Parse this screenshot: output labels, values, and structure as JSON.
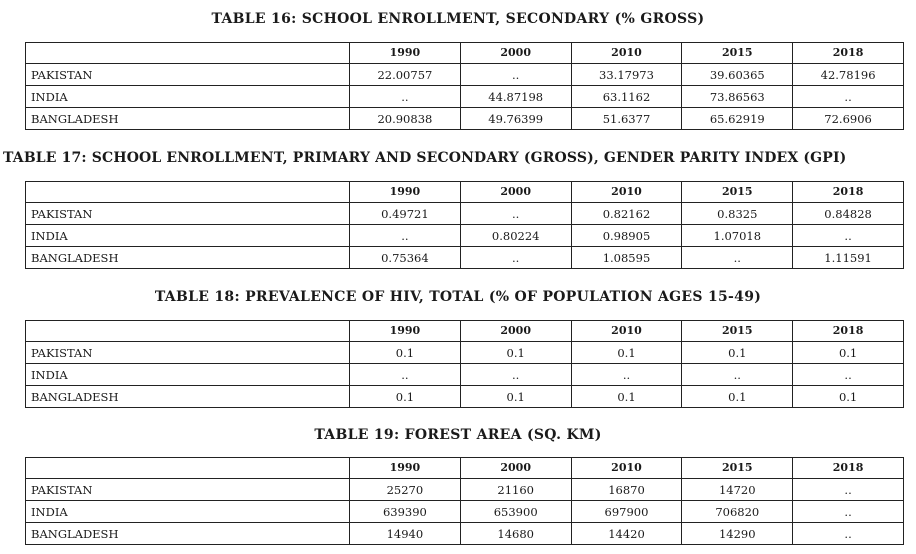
{
  "years": [
    "1990",
    "2000",
    "2010",
    "2015",
    "2018"
  ],
  "tables": [
    {
      "title": "TABLE 16: SCHOOL ENROLLMENT, SECONDARY (% GROSS)",
      "rows": [
        {
          "country": "PAKISTAN",
          "values": [
            "22.00757",
            "..",
            "33.17973",
            "39.60365",
            "42.78196"
          ]
        },
        {
          "country": "INDIA",
          "values": [
            "..",
            "44.87198",
            "63.1162",
            "73.86563",
            ".."
          ]
        },
        {
          "country": "BANGLADESH",
          "values": [
            "20.90838",
            "49.76399",
            "51.6377",
            "65.62919",
            "72.6906"
          ]
        }
      ]
    },
    {
      "title": "TABLE 17: SCHOOL ENROLLMENT, PRIMARY AND SECONDARY (GROSS), GENDER PARITY INDEX (GPI)",
      "rows": [
        {
          "country": "PAKISTAN",
          "values": [
            "0.49721",
            "..",
            "0.82162",
            "0.8325",
            "0.84828"
          ]
        },
        {
          "country": "INDIA",
          "values": [
            "..",
            "0.80224",
            "0.98905",
            "1.07018",
            ".."
          ]
        },
        {
          "country": "BANGLADESH",
          "values": [
            "0.75364",
            "..",
            "1.08595",
            "..",
            "1.11591"
          ]
        }
      ]
    },
    {
      "title": "TABLE 18: PREVALENCE OF HIV, TOTAL (% OF POPULATION AGES 15-49)",
      "rows": [
        {
          "country": "PAKISTAN",
          "values": [
            "0.1",
            "0.1",
            "0.1",
            "0.1",
            "0.1"
          ]
        },
        {
          "country": "INDIA",
          "values": [
            "..",
            "..",
            "..",
            "..",
            ".."
          ]
        },
        {
          "country": "BANGLADESH",
          "values": [
            "0.1",
            "0.1",
            "0.1",
            "0.1",
            "0.1"
          ]
        }
      ]
    },
    {
      "title": "TABLE 19: FOREST AREA (SQ. KM)",
      "rows": [
        {
          "country": "PAKISTAN",
          "values": [
            "25270",
            "21160",
            "16870",
            "14720",
            ".."
          ]
        },
        {
          "country": "INDIA",
          "values": [
            "639390",
            "653900",
            "697900",
            "706820",
            ".."
          ]
        },
        {
          "country": "BANGLADESH",
          "values": [
            "14940",
            "14680",
            "14420",
            "14290",
            ".."
          ]
        }
      ]
    }
  ]
}
